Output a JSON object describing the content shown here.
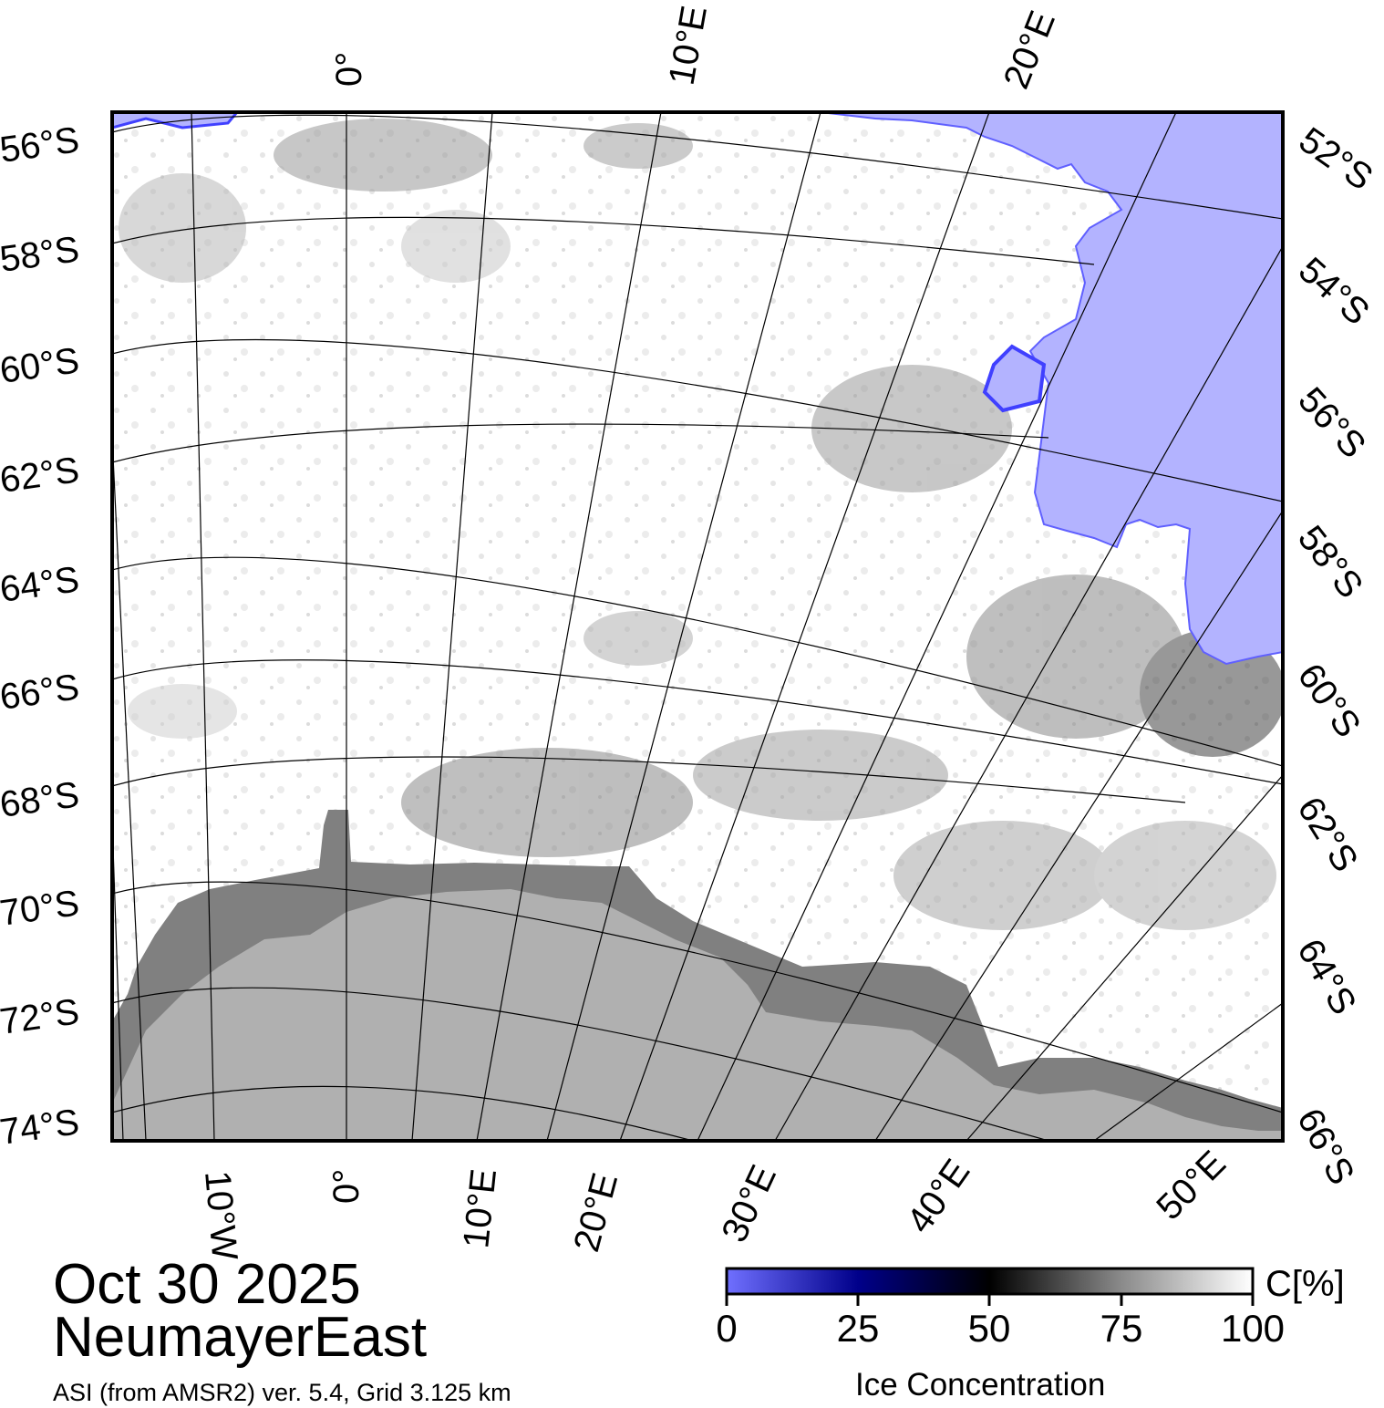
{
  "map": {
    "date": "Oct 30 2025",
    "region": "NeumayerEast",
    "product": "ASI (from AMSR2) ver. 5.4,  Grid 3.125 km",
    "top_lon_labels": [
      "0°",
      "10°E",
      "20°E"
    ],
    "bottom_lon_labels": [
      "10°W",
      "0°",
      "10°E",
      "20°E",
      "30°E",
      "40°E",
      "50°E"
    ],
    "left_lat_labels": [
      "56°S",
      "58°S",
      "60°S",
      "62°S",
      "64°S",
      "66°S",
      "68°S",
      "70°S",
      "72°S",
      "74°S"
    ],
    "right_lat_labels": [
      "52°S",
      "54°S",
      "56°S",
      "58°S",
      "60°S",
      "62°S",
      "64°S",
      "66°S"
    ],
    "colors": {
      "open_water": "#b3b3ff",
      "land_ice": "#b0b0b0",
      "ice_shelf": "#808080",
      "sea_ice": "#ffffff",
      "low_conc": "#6b6bff",
      "mid_conc": "#000033"
    }
  },
  "colorbar": {
    "title": "Ice Concentration",
    "unit": "C[%]",
    "ticks": [
      "0",
      "25",
      "50",
      "75",
      "100"
    ]
  }
}
